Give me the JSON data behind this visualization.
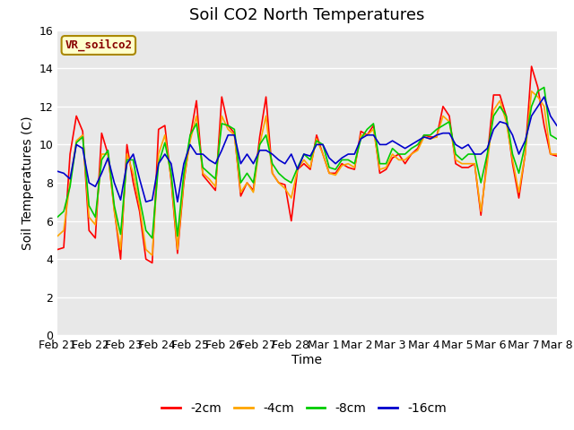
{
  "title": "Soil CO2 North Temperatures",
  "ylabel": "Soil Temperatures (C)",
  "xlabel": "Time",
  "legend_label": "VR_soilco2",
  "ylim": [
    0,
    16
  ],
  "yticks": [
    0,
    2,
    4,
    6,
    8,
    10,
    12,
    14,
    16
  ],
  "xtick_labels": [
    "Feb 21",
    "Feb 22",
    "Feb 23",
    "Feb 24",
    "Feb 25",
    "Feb 26",
    "Feb 27",
    "Feb 28",
    "Mar 1",
    "Mar 2",
    "Mar 3",
    "Mar 4",
    "Mar 5",
    "Mar 6",
    "Mar 7",
    "Mar 8"
  ],
  "colors": {
    "-2cm": "#ff0000",
    "-4cm": "#ffa500",
    "-8cm": "#00cc00",
    "-16cm": "#0000cc"
  },
  "series_2cm": [
    4.5,
    4.6,
    9.5,
    11.5,
    10.7,
    5.5,
    5.1,
    10.6,
    9.5,
    6.6,
    4.0,
    10.0,
    8.0,
    6.5,
    4.0,
    3.8,
    10.8,
    11.0,
    8.1,
    4.3,
    8.0,
    10.4,
    12.3,
    8.4,
    8.0,
    7.6,
    12.5,
    11.0,
    10.6,
    7.3,
    8.0,
    7.6,
    10.4,
    12.5,
    8.5,
    8.0,
    7.9,
    6.0,
    8.7,
    9.0,
    8.7,
    10.5,
    9.5,
    8.5,
    8.5,
    9.0,
    8.8,
    8.7,
    10.7,
    10.5,
    11.0,
    8.5,
    8.7,
    9.3,
    9.5,
    9.0,
    9.5,
    9.8,
    10.5,
    10.4,
    10.4,
    12.0,
    11.5,
    9.0,
    8.8,
    8.8,
    9.0,
    6.3,
    9.3,
    12.6,
    12.6,
    11.5,
    9.0,
    7.2,
    9.5,
    14.1,
    13.0,
    11.0,
    9.5,
    9.4
  ],
  "series_4cm": [
    5.2,
    5.5,
    8.0,
    10.2,
    10.5,
    6.2,
    5.8,
    9.5,
    9.5,
    6.5,
    4.5,
    9.5,
    8.5,
    6.8,
    4.5,
    4.2,
    9.5,
    10.5,
    8.2,
    4.5,
    8.1,
    10.2,
    11.5,
    8.5,
    8.2,
    7.8,
    11.5,
    10.8,
    10.5,
    7.5,
    8.0,
    7.5,
    10.0,
    11.5,
    8.5,
    8.0,
    7.7,
    7.2,
    8.7,
    9.2,
    8.8,
    10.3,
    9.5,
    8.5,
    8.4,
    8.9,
    9.0,
    8.8,
    10.5,
    10.5,
    10.8,
    8.7,
    8.8,
    9.5,
    9.2,
    9.2,
    9.5,
    9.7,
    10.4,
    10.3,
    10.4,
    11.5,
    11.2,
    9.2,
    9.0,
    9.0,
    9.0,
    6.5,
    9.0,
    11.8,
    12.3,
    11.2,
    9.2,
    7.5,
    9.5,
    12.8,
    12.5,
    12.0,
    9.5,
    9.5
  ],
  "series_8cm": [
    6.2,
    6.5,
    7.8,
    10.1,
    10.4,
    6.8,
    6.2,
    9.2,
    9.7,
    6.8,
    5.3,
    9.2,
    9.2,
    7.2,
    5.5,
    5.1,
    9.0,
    10.1,
    8.5,
    5.2,
    8.5,
    10.5,
    11.1,
    8.8,
    8.5,
    8.2,
    11.1,
    11.0,
    10.8,
    8.0,
    8.5,
    8.0,
    10.0,
    10.5,
    9.0,
    8.5,
    8.2,
    8.0,
    8.8,
    9.5,
    9.2,
    10.2,
    10.0,
    8.8,
    8.7,
    9.2,
    9.2,
    9.0,
    10.3,
    10.8,
    11.1,
    9.0,
    9.0,
    9.8,
    9.5,
    9.5,
    9.8,
    10.0,
    10.5,
    10.5,
    10.8,
    11.0,
    11.2,
    9.5,
    9.2,
    9.5,
    9.5,
    8.0,
    9.5,
    11.5,
    12.0,
    11.5,
    9.5,
    8.5,
    10.0,
    12.0,
    12.8,
    13.0,
    10.5,
    10.3
  ],
  "series_16cm": [
    8.6,
    8.5,
    8.2,
    10.0,
    9.8,
    8.0,
    7.8,
    8.5,
    9.3,
    8.0,
    7.1,
    9.0,
    9.5,
    8.2,
    7.0,
    7.1,
    9.0,
    9.5,
    9.0,
    7.0,
    9.0,
    10.0,
    9.5,
    9.5,
    9.2,
    9.0,
    9.7,
    10.5,
    10.5,
    9.0,
    9.5,
    9.0,
    9.7,
    9.7,
    9.5,
    9.2,
    9.0,
    9.5,
    8.7,
    9.5,
    9.4,
    10.0,
    10.0,
    9.3,
    9.0,
    9.3,
    9.5,
    9.5,
    10.3,
    10.5,
    10.5,
    10.0,
    10.0,
    10.2,
    10.0,
    9.8,
    10.0,
    10.2,
    10.4,
    10.3,
    10.5,
    10.6,
    10.6,
    10.0,
    9.8,
    10.0,
    9.5,
    9.5,
    9.8,
    10.8,
    11.2,
    11.1,
    10.5,
    9.5,
    10.2,
    11.5,
    12.0,
    12.5,
    11.5,
    11.0
  ],
  "bg_color": "#e8e8e8",
  "grid_color": "#ffffff",
  "title_fontsize": 13,
  "axis_fontsize": 10,
  "tick_fontsize": 9,
  "legend_box_color": "#ffffcc",
  "legend_box_edge": "#aa8800",
  "legend_text_color": "#880000"
}
